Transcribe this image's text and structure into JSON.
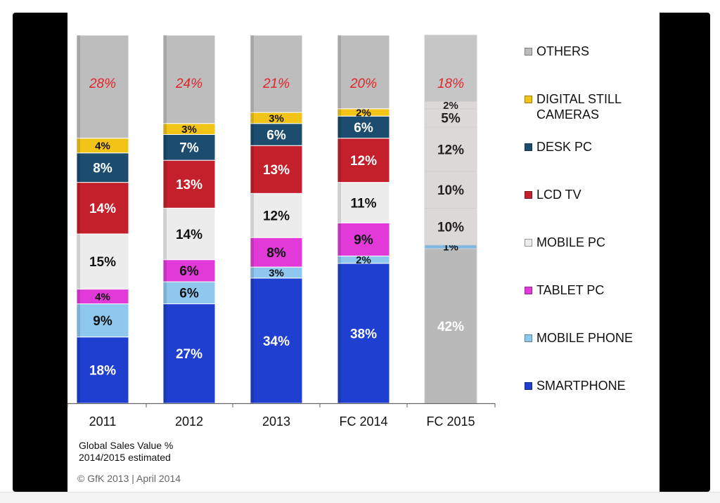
{
  "chart_data": {
    "type": "bar",
    "stacked": true,
    "categories": [
      "2011",
      "2012",
      "2013",
      "FC 2014",
      "FC 2015"
    ],
    "ylim": [
      0,
      100
    ],
    "series": [
      {
        "name": "SMARTPHONE",
        "color": "#1e3fcf",
        "label_color": "#ffffff",
        "values": [
          18,
          27,
          34,
          38,
          42
        ],
        "labels": [
          "18%",
          "27%",
          "34%",
          "38%",
          "42%"
        ]
      },
      {
        "name": "MOBILE PHONE",
        "color": "#8ec8ef",
        "label_color": "#111111",
        "values": [
          9,
          6,
          3,
          2,
          1
        ],
        "labels": [
          "9%",
          "6%",
          "3%",
          "2%",
          "1%"
        ]
      },
      {
        "name": "TABLET PC",
        "color": "#e23ad8",
        "label_color": "#111111",
        "values": [
          4,
          6,
          8,
          9,
          10
        ],
        "labels": [
          "4%",
          "6%",
          "8%",
          "9%",
          "10%"
        ]
      },
      {
        "name": "MOBILE PC",
        "color": "#ececec",
        "label_color": "#111111",
        "values": [
          15,
          14,
          12,
          11,
          10
        ],
        "labels": [
          "15%",
          "14%",
          "12%",
          "11%",
          "10%"
        ]
      },
      {
        "name": "LCD TV",
        "color": "#c4202b",
        "label_color": "#ffffff",
        "values": [
          14,
          13,
          13,
          12,
          12
        ],
        "labels": [
          "14%",
          "13%",
          "13%",
          "12%",
          "12%"
        ]
      },
      {
        "name": "DESK PC",
        "color": "#1c4d6e",
        "label_color": "#ffffff",
        "values": [
          8,
          7,
          6,
          6,
          5
        ],
        "labels": [
          "8%",
          "7%",
          "6%",
          "6%",
          "5%"
        ]
      },
      {
        "name": "DIGITAL STILL\nCAMERAS",
        "color": "#f2c418",
        "label_color": "#111111",
        "values": [
          4,
          3,
          3,
          2,
          2
        ],
        "labels": [
          "4%",
          "3%",
          "3%",
          "2%",
          "2%"
        ]
      },
      {
        "name": "OTHERS",
        "color": "#bdbdbd",
        "label_color": "#e0262a",
        "values": [
          28,
          24,
          21,
          20,
          18
        ],
        "labels": [
          "28%",
          "24%",
          "21%",
          "20%",
          "18%"
        ]
      }
    ],
    "legend_order": [
      "OTHERS",
      "DIGITAL STILL\nCAMERAS",
      "DESK PC",
      "LCD TV",
      "MOBILE PC",
      "TABLET PC",
      "MOBILE PHONE",
      "SMARTPHONE"
    ],
    "legend_position": "right",
    "faded_category": "FC 2015",
    "faded_color": "#b9b9b9",
    "grid": false
  },
  "footnote": {
    "line1": "Global Sales Value %",
    "line2": "2014/2015 estimated"
  },
  "copyright": "© GfK 2013 | April 2014"
}
